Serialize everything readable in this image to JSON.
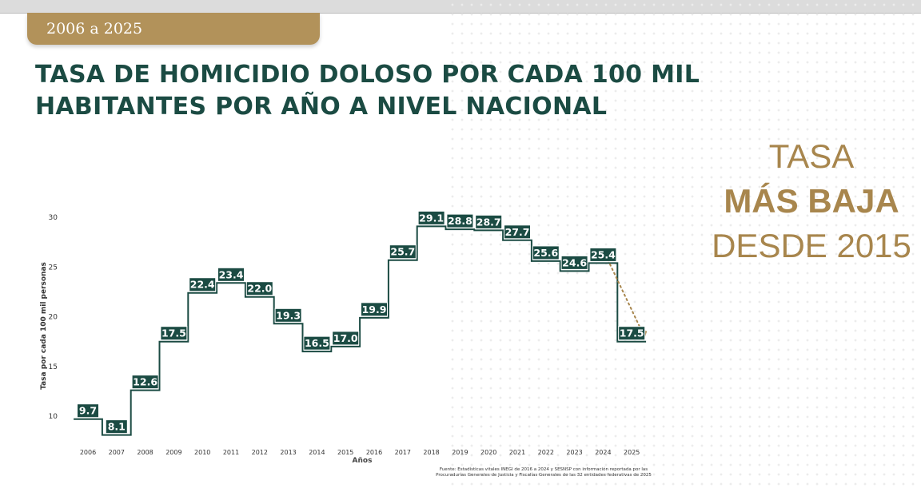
{
  "header": {
    "period_tab": "2006 a 2025",
    "title_line1": "TASA DE HOMICIDIO DOLOSO POR CADA 100 MIL",
    "title_line2": "HABITANTES POR AÑO A NIVEL NACIONAL"
  },
  "highlight": {
    "line1": "TASA",
    "line2": "MÁS BAJA",
    "line3": "DESDE 2015"
  },
  "source_note": {
    "line1": "Fuente: Estadísticas vitales INEGI de 2016 a 2024 y SESNSP con información reportada por las",
    "line2": "Procuradurías Generales de Justicia y Fiscalías Generales de las 32 entidades federativas de 2025"
  },
  "colors": {
    "accent_green": "#1b4b43",
    "gold": "#a8864d",
    "tab_gold": "#b2925a"
  },
  "chart_data": {
    "type": "line",
    "step": true,
    "categories": [
      "2006",
      "2007",
      "2008",
      "2009",
      "2010",
      "2011",
      "2012",
      "2013",
      "2014",
      "2015",
      "2016",
      "2017",
      "2018",
      "2019",
      "2020",
      "2021",
      "2022",
      "2023",
      "2024",
      "2025"
    ],
    "values": [
      9.7,
      8.1,
      12.6,
      17.5,
      22.4,
      23.4,
      22.0,
      19.3,
      16.5,
      17.0,
      19.9,
      25.7,
      29.1,
      28.8,
      28.7,
      27.7,
      25.6,
      24.6,
      25.4,
      17.5
    ],
    "data_labels": [
      "9.7",
      "8.1",
      "12.6",
      "17.5",
      "22.4",
      "23.4",
      "22.0",
      "19.3",
      "16.5",
      "17.0",
      "19.9",
      "25.7",
      "29.1",
      "28.8",
      "28.7",
      "27.7",
      "25.6",
      "24.6",
      "25.4",
      "17.5"
    ],
    "xlabel": "Años",
    "ylabel": "Tasa por cada 100 mil personas",
    "yticks": [
      "10",
      "15",
      "20",
      "25",
      "30"
    ],
    "ylim": [
      8,
      31
    ],
    "grid": false,
    "annotation": "dotted arrow from 2024 to 2025"
  }
}
